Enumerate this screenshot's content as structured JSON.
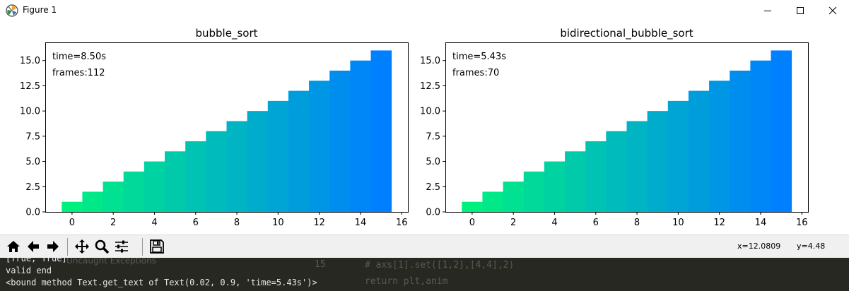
{
  "window": {
    "title": "Figure 1"
  },
  "toolbar": {
    "buttons": [
      "home-button",
      "back-button",
      "forward-button",
      "pan-button",
      "zoom-button",
      "configure-subplots-button",
      "save-button"
    ],
    "coord_x": "x=12.0809",
    "coord_y": "y=4.48"
  },
  "console": {
    "lines": [
      "[True, True]",
      "valid end",
      "<bound method Text.get_text of Text(0.02, 0.9, 'time=5.43s')>"
    ],
    "background": {
      "uncaught": "Uncaught Exceptions",
      "linenum": "15",
      "code1": "# axs[1].set([1,2],[4,4],2)",
      "code2": "return plt,anim"
    }
  },
  "colors": {
    "bar_start": "#00f080",
    "bar_end": "#007fff",
    "console_bg": "#272822"
  },
  "chart_data": [
    {
      "type": "bar",
      "title": "bubble_sort",
      "x": [
        0,
        1,
        2,
        3,
        4,
        5,
        6,
        7,
        8,
        9,
        10,
        11,
        12,
        13,
        14,
        15
      ],
      "values": [
        1,
        2,
        3,
        4,
        5,
        6,
        7,
        8,
        9,
        10,
        11,
        12,
        13,
        14,
        15,
        16
      ],
      "xlim": [
        -1.3,
        16.3
      ],
      "ylim": [
        0,
        16.8
      ],
      "xticks": [
        0,
        2,
        4,
        6,
        8,
        10,
        12,
        14,
        16
      ],
      "yticks": [
        0.0,
        2.5,
        5.0,
        7.5,
        10.0,
        12.5,
        15.0
      ],
      "annotations": [
        "time=8.50s",
        "frames:112"
      ]
    },
    {
      "type": "bar",
      "title": "bidirectional_bubble_sort",
      "x": [
        0,
        1,
        2,
        3,
        4,
        5,
        6,
        7,
        8,
        9,
        10,
        11,
        12,
        13,
        14,
        15
      ],
      "values": [
        1,
        2,
        3,
        4,
        5,
        6,
        7,
        8,
        9,
        10,
        11,
        12,
        13,
        14,
        15,
        16
      ],
      "xlim": [
        -1.3,
        16.3
      ],
      "ylim": [
        0,
        16.8
      ],
      "xticks": [
        0,
        2,
        4,
        6,
        8,
        10,
        12,
        14,
        16
      ],
      "yticks": [
        0.0,
        2.5,
        5.0,
        7.5,
        10.0,
        12.5,
        15.0
      ],
      "annotations": [
        "time=5.43s",
        "frames:70"
      ]
    }
  ]
}
